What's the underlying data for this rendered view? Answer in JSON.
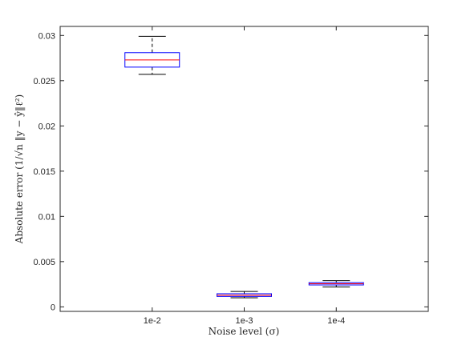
{
  "chart_data": {
    "type": "box",
    "title": "",
    "xlabel": "Noise level (σ)",
    "ylabel": "Absolute error (1/√n ‖y − ŷ‖ℓ²)",
    "categories": [
      "1e-2",
      "1e-3",
      "1e-4"
    ],
    "boxes": [
      {
        "category": "1e-2",
        "whisker_low": 0.0257,
        "q1": 0.0265,
        "median": 0.0273,
        "q3": 0.0281,
        "whisker_high": 0.0299
      },
      {
        "category": "1e-3",
        "whisker_low": 0.001,
        "q1": 0.00115,
        "median": 0.00128,
        "q3": 0.00145,
        "whisker_high": 0.0017
      },
      {
        "category": "1e-4",
        "whisker_low": 0.0022,
        "q1": 0.00242,
        "median": 0.00255,
        "q3": 0.00268,
        "whisker_high": 0.0029
      }
    ],
    "ylim": [
      -0.0005,
      0.031
    ],
    "yticks": [
      0,
      0.005,
      0.01,
      0.015,
      0.02,
      0.025,
      0.03
    ],
    "ytick_labels": [
      "0",
      "0.005",
      "0.01",
      "0.015",
      "0.02",
      "0.025",
      "0.03"
    ],
    "grid": false,
    "colors": {
      "box": "#0000ff",
      "median": "#ff0000",
      "whisker": "#000000",
      "axes": "#262626"
    }
  }
}
